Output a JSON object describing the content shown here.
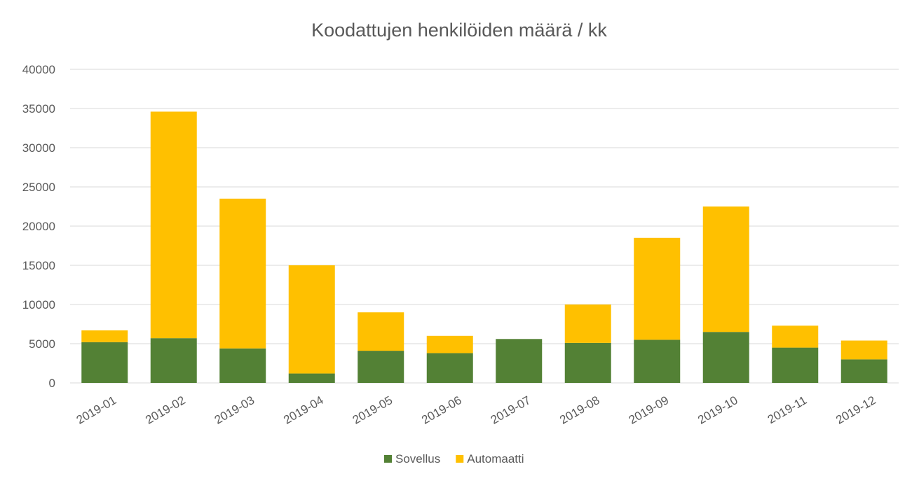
{
  "chart_data": {
    "type": "bar",
    "stacked": true,
    "title": "Koodattujen henkilöiden määrä / kk",
    "xlabel": "",
    "ylabel": "",
    "categories": [
      "2019-01",
      "2019-02",
      "2019-03",
      "2019-04",
      "2019-05",
      "2019-06",
      "2019-07",
      "2019-08",
      "2019-09",
      "2019-10",
      "2019-11",
      "2019-12"
    ],
    "series": [
      {
        "name": "Sovellus",
        "color": "#538135",
        "values": [
          5200,
          5700,
          4400,
          1200,
          4100,
          3800,
          5600,
          5100,
          5500,
          6500,
          4500,
          3000
        ]
      },
      {
        "name": "Automaatti",
        "color": "#ffc000",
        "values": [
          1500,
          28900,
          19100,
          13800,
          4900,
          2200,
          0,
          4900,
          13000,
          16000,
          2800,
          2400
        ]
      }
    ],
    "ylim": [
      0,
      40000
    ],
    "yticks": [
      "0",
      "5000",
      "10000",
      "15000",
      "20000",
      "25000",
      "30000",
      "35000",
      "40000"
    ],
    "ytick_values": [
      0,
      5000,
      10000,
      15000,
      20000,
      25000,
      30000,
      35000,
      40000
    ],
    "grid": true,
    "legend_position": "bottom"
  }
}
